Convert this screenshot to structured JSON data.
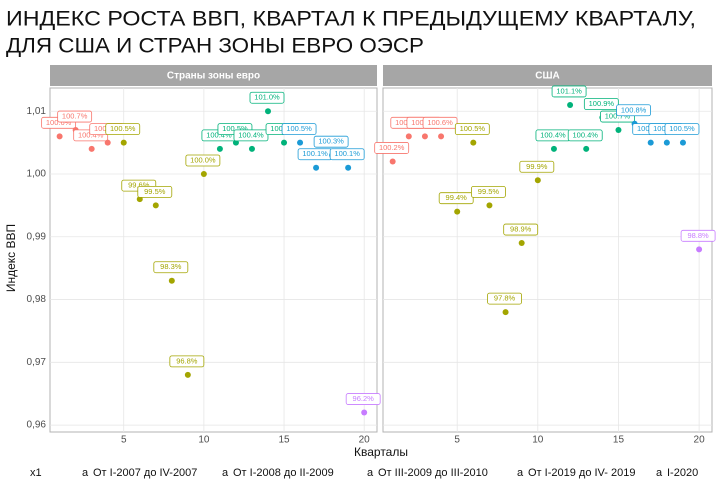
{
  "title": [
    "ИНДЕКС РОСТА ВВП, КВАРТАЛ К ПРЕДЫДУЩЕМУ КВАРТАЛУ,",
    "ДЛЯ США И  СТРАН ЗОНЫ ЕВРО ОЭСР"
  ],
  "xlabel": "Кварталы",
  "ylabel": "Индекс ВВП",
  "legend_title": "x1",
  "legend_key": "a",
  "chart_data": [
    {
      "type": "scatter",
      "title": "Страны зоны евро",
      "xlim": [
        0.4,
        20.8
      ],
      "xticks": [
        5,
        10,
        15,
        20
      ],
      "ylim": [
        0.9589,
        1.0137
      ],
      "yticks": [
        {
          "value": 0.96,
          "label": "0,96"
        },
        {
          "value": 0.97,
          "label": "0,97"
        },
        {
          "value": 0.98,
          "label": "0,98"
        },
        {
          "value": 0.99,
          "label": "0,99"
        },
        {
          "value": 1.0,
          "label": "1,00"
        },
        {
          "value": 1.01,
          "label": "1,01"
        }
      ],
      "grid": true,
      "series": [
        {
          "name": "От I-2007 до IV-2007",
          "color": "#f8766d",
          "x": [
            1,
            2,
            3,
            4
          ],
          "values": [
            1.006,
            1.007,
            1.004,
            1.005
          ],
          "value_labels": [
            "100.6%",
            "100.7%",
            "100.4%",
            "100.5%"
          ]
        },
        {
          "name": "От I-2008 до II-2009",
          "color": "#a3a500",
          "x": [
            5,
            6,
            7,
            8,
            9,
            10
          ],
          "values": [
            1.005,
            0.996,
            0.995,
            0.983,
            0.968,
            1.0
          ],
          "value_labels": [
            "100.5%",
            "99.6%",
            "99.5%",
            "98.3%",
            "96.8%",
            "100.0%"
          ]
        },
        {
          "name": "От III-2009 до III-2010",
          "color": "#00b27a",
          "x": [
            11,
            12,
            13,
            14,
            15
          ],
          "values": [
            1.004,
            1.005,
            1.004,
            1.01,
            1.005
          ],
          "value_labels": [
            "100.4%",
            "100.5%",
            "100.4%",
            "101.0%",
            "100.5%"
          ]
        },
        {
          "name": "От I-2019 до IV- 2019",
          "color": "#1b9ad6",
          "x": [
            16,
            17,
            18,
            19
          ],
          "values": [
            1.005,
            1.001,
            1.003,
            1.001
          ],
          "value_labels": [
            "100.5%",
            "100.1%",
            "100.3%",
            "100.1%"
          ]
        },
        {
          "name": "I-2020",
          "color": "#c77cff",
          "x": [
            20
          ],
          "values": [
            0.962
          ],
          "value_labels": [
            "96.2%"
          ]
        }
      ]
    },
    {
      "type": "scatter",
      "title": "США",
      "xlim": [
        0.4,
        20.8
      ],
      "xticks": [
        5,
        10,
        15,
        20
      ],
      "ylim": [
        0.9589,
        1.0137
      ],
      "yticks": [
        0.96,
        0.97,
        0.98,
        0.99,
        1.0,
        1.01
      ],
      "grid": true,
      "series": [
        {
          "color": "#f8766d",
          "x": [
            1,
            2,
            3,
            4
          ],
          "values": [
            1.002,
            1.006,
            1.006,
            1.006
          ],
          "value_labels": [
            "100.2%",
            "100.6%",
            "100.6%",
            "100.6%"
          ]
        },
        {
          "color": "#a3a500",
          "x": [
            5,
            6,
            7,
            8,
            9,
            10
          ],
          "values": [
            0.994,
            1.005,
            0.995,
            0.978,
            0.989,
            0.999
          ],
          "value_labels": [
            "99.4%",
            "100.5%",
            "99.5%",
            "97.8%",
            "98.9%",
            "99.9%"
          ]
        },
        {
          "color": "#00b27a",
          "x": [
            11,
            12,
            13,
            14,
            15
          ],
          "values": [
            1.004,
            1.011,
            1.004,
            1.009,
            1.007
          ],
          "value_labels": [
            "100.4%",
            "101.1%",
            "100.4%",
            "100.9%",
            "100.7%"
          ]
        },
        {
          "color": "#1b9ad6",
          "x": [
            16,
            17,
            18,
            19
          ],
          "values": [
            1.008,
            1.005,
            1.005,
            1.005
          ],
          "value_labels": [
            "100.8%",
            "100.5%",
            "100.5%",
            "100.5%"
          ]
        },
        {
          "color": "#c77cff",
          "x": [
            20
          ],
          "values": [
            0.988
          ],
          "value_labels": [
            "98.8%"
          ]
        }
      ]
    }
  ]
}
